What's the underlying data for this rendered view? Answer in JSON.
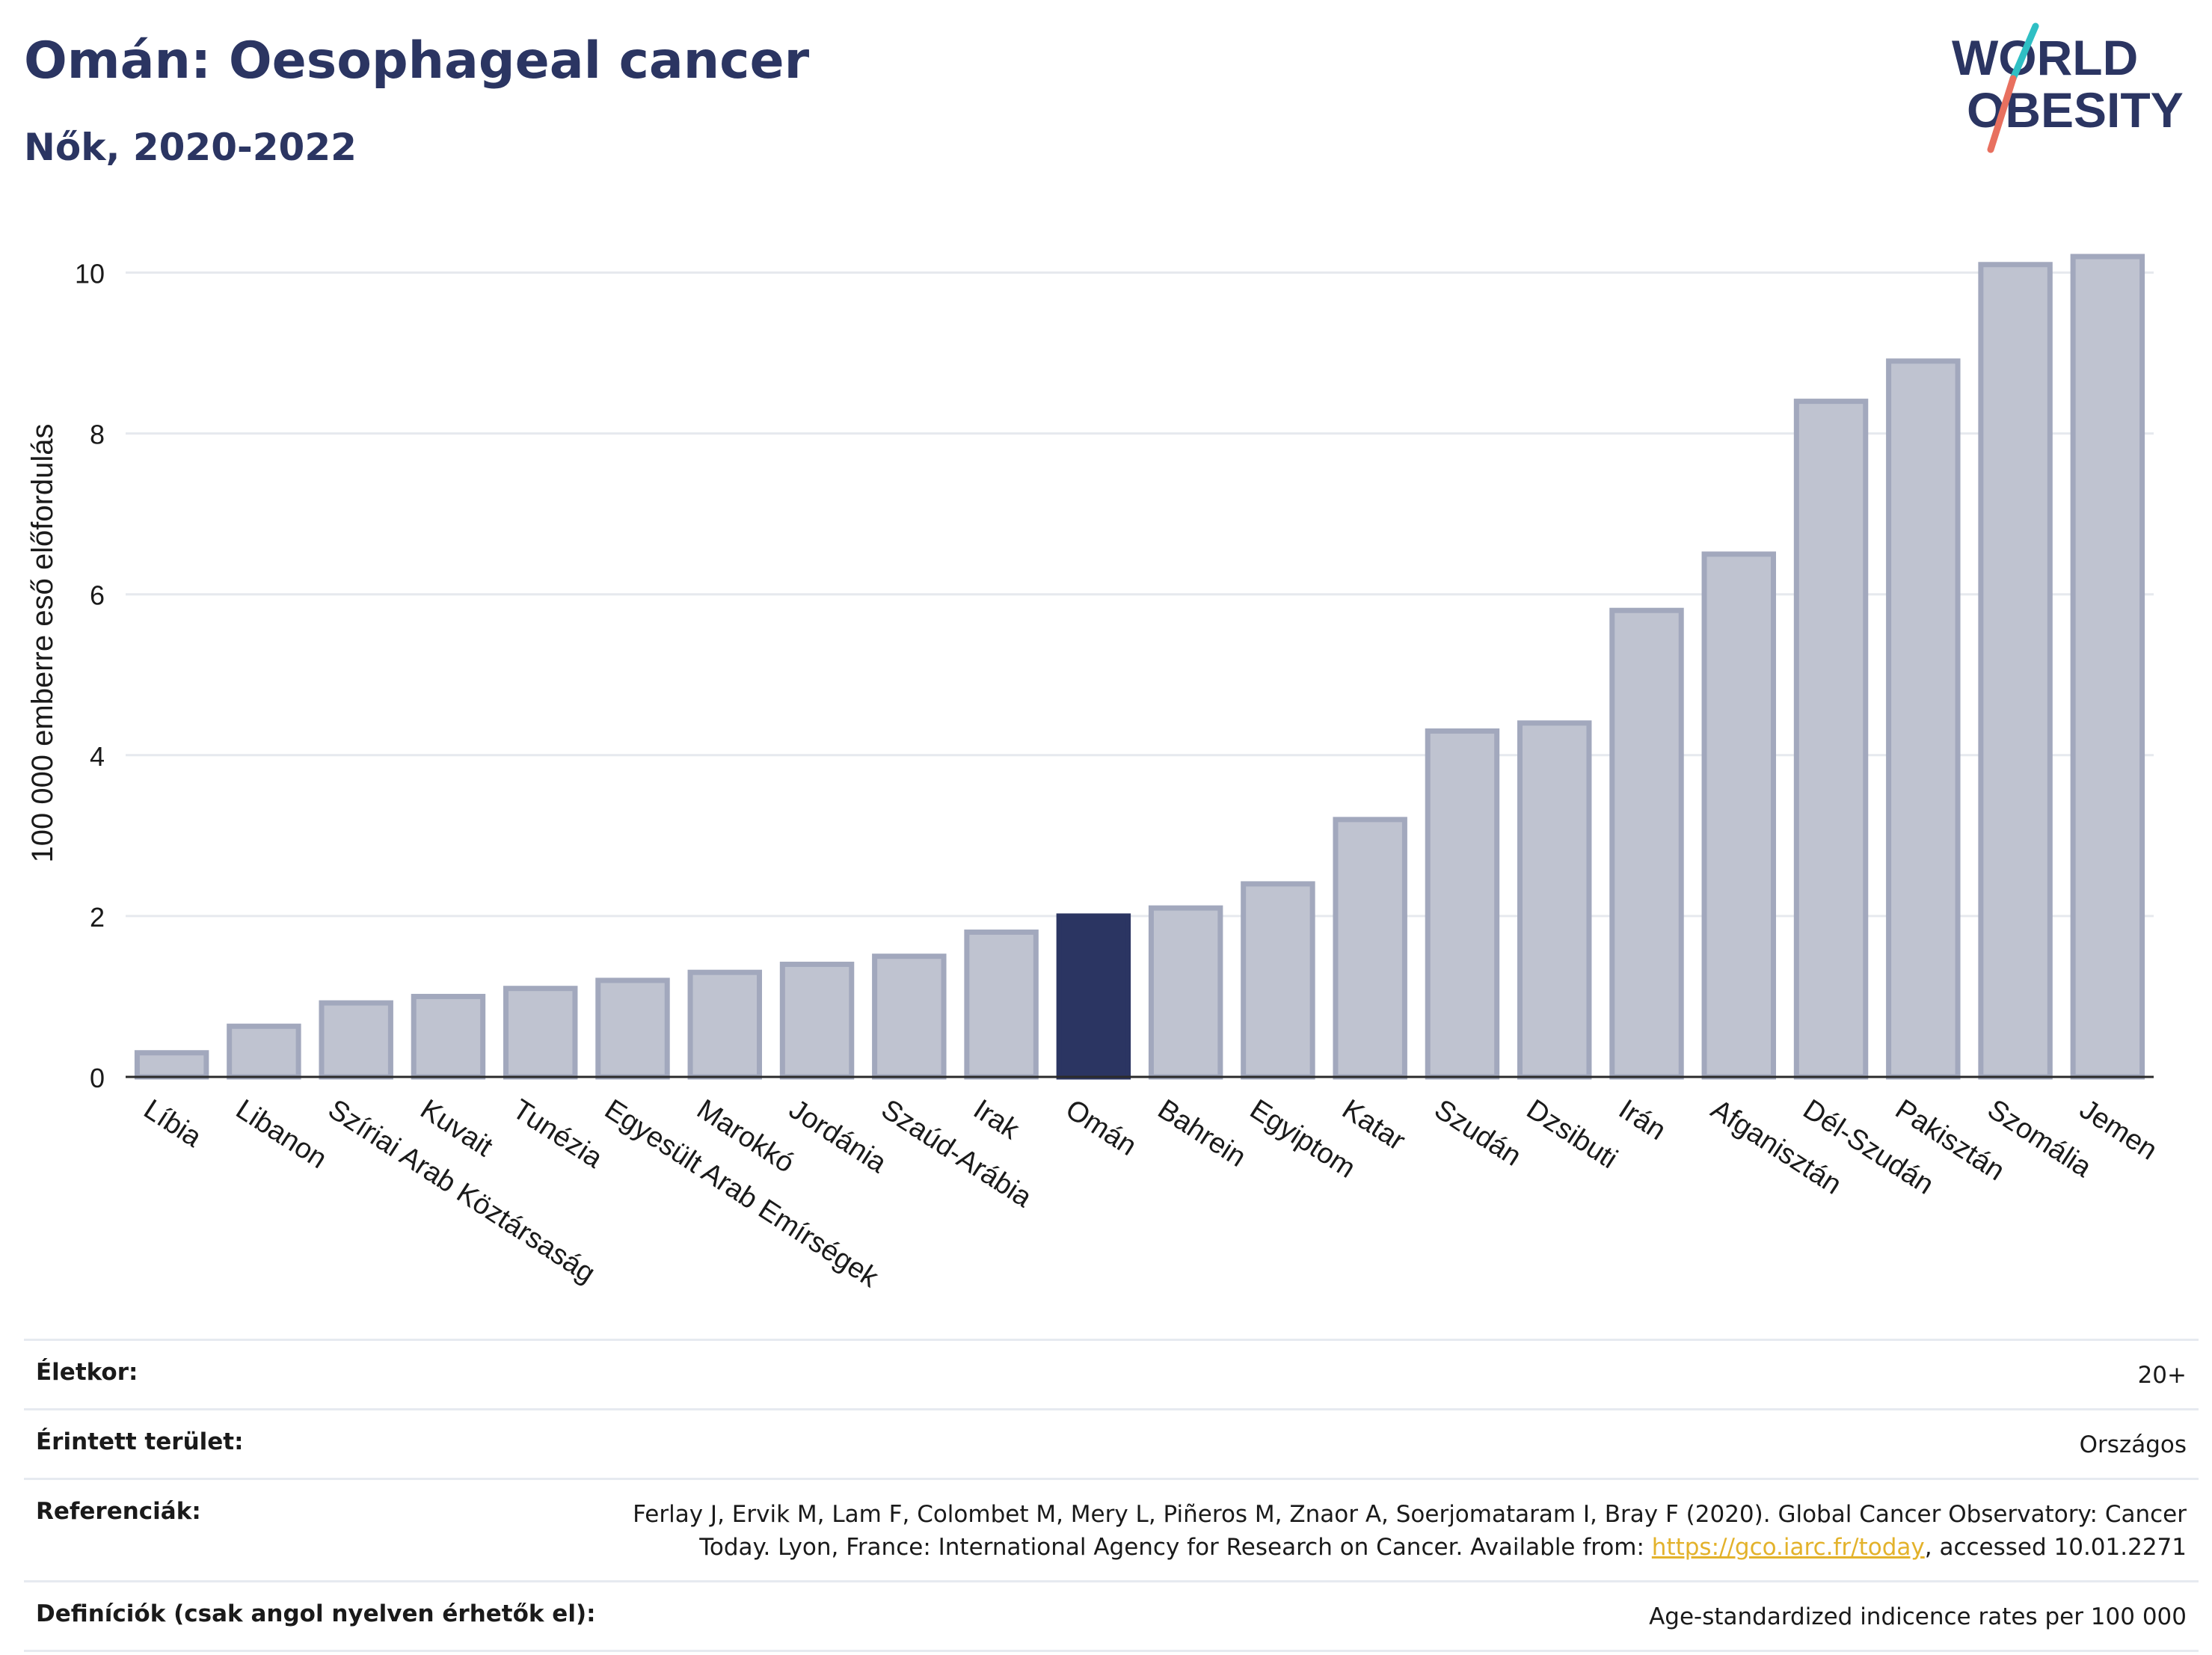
{
  "header": {
    "title": "Omán: Oesophageal cancer",
    "subtitle": "Nők, 2020-2022"
  },
  "logo": {
    "line1": "WORLD",
    "line2": "OBESITY",
    "slash_color_top": "#2fbfc4",
    "slash_color_bottom": "#e8705f",
    "text_color": "#2b3562"
  },
  "colors": {
    "bar": "#bfc3d0",
    "bar_stroke": "#a2a8bd",
    "highlight": "#2b3562",
    "grid": "#e6e9ee"
  },
  "chart_data": {
    "type": "bar",
    "categories": [
      "Líbia",
      "Libanon",
      "Szíriai Arab Köztársaság",
      "Kuvait",
      "Tunézia",
      "Egyesült Arab Emírségek",
      "Marokkó",
      "Jordánia",
      "Szaúd-Arábia",
      "Irak",
      "Omán",
      "Bahrein",
      "Egyiptom",
      "Katar",
      "Szudán",
      "Dzsibuti",
      "Irán",
      "Afganisztán",
      "Dél-Szudán",
      "Pakisztán",
      "Szomália",
      "Jemen"
    ],
    "values": [
      0.3,
      0.63,
      0.92,
      1.0,
      1.1,
      1.2,
      1.3,
      1.4,
      1.5,
      1.8,
      2.0,
      2.1,
      2.4,
      3.2,
      4.3,
      4.4,
      5.8,
      6.5,
      8.4,
      8.9,
      10.1,
      10.2
    ],
    "highlight": "Omán",
    "ylabel": "100 000 emberre eső előfordulás",
    "xlabel": "",
    "ylim": [
      0,
      10.6
    ],
    "yticks": [
      0,
      2,
      4,
      6,
      8,
      10
    ],
    "grid": true
  },
  "info": [
    {
      "label": "Életkor:",
      "value": "20+"
    },
    {
      "label": "Érintett terület:",
      "value": "Országos"
    },
    {
      "label": "Referenciák:",
      "value_line1": "Ferlay J, Ervik M, Lam F, Colombet M, Mery L, Piñeros M, Znaor A, Soerjomataram I, Bray F (2020). Global Cancer Observatory: Cancer",
      "value_line2_pre": "Today. Lyon, France: International Agency for Research on Cancer. Available from: ",
      "link": "https://gco.iarc.fr/today",
      "value_line2_post": ", accessed 10.01.2271"
    },
    {
      "label": "Definíciók (csak angol nyelven érhetők el):",
      "value": "Age-standardized indicence rates per 100 000"
    }
  ]
}
